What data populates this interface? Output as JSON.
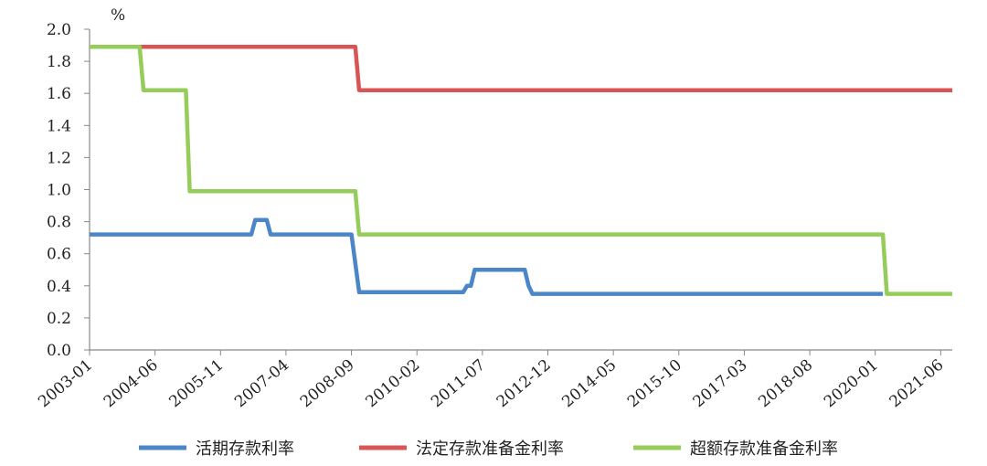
{
  "chart_data": {
    "type": "line",
    "unit_label": "%",
    "x_tick_labels": [
      "2003-01",
      "2004-06",
      "2005-11",
      "2007-04",
      "2008-09",
      "2010-02",
      "2011-07",
      "2012-12",
      "2014-05",
      "2015-10",
      "2017-03",
      "2018-08",
      "2020-01",
      "2021-06"
    ],
    "x_range": [
      "2003-01",
      "2021-09"
    ],
    "ylim": [
      0,
      2.0
    ],
    "y_ticks": [
      "0.0",
      "0.2",
      "0.4",
      "0.6",
      "0.8",
      "1.0",
      "1.2",
      "1.4",
      "1.6",
      "1.8",
      "2.0"
    ],
    "grid": false,
    "legend_position": "bottom",
    "series": [
      {
        "name": "活期存款利率",
        "color": "#4a86c8",
        "points": [
          [
            "2003-01",
            0.72
          ],
          [
            "2006-07",
            0.72
          ],
          [
            "2006-08",
            0.81
          ],
          [
            "2006-11",
            0.81
          ],
          [
            "2006-12",
            0.72
          ],
          [
            "2008-09",
            0.72
          ],
          [
            "2008-11",
            0.36
          ],
          [
            "2011-02",
            0.36
          ],
          [
            "2011-03",
            0.4
          ],
          [
            "2011-04",
            0.4
          ],
          [
            "2011-05",
            0.5
          ],
          [
            "2012-06",
            0.5
          ],
          [
            "2012-07",
            0.4
          ],
          [
            "2012-08",
            0.35
          ],
          [
            "2020-03",
            0.35
          ]
        ]
      },
      {
        "name": "法定存款准备金利率",
        "color": "#d95555",
        "points": [
          [
            "2003-01",
            1.89
          ],
          [
            "2008-10",
            1.89
          ],
          [
            "2008-11",
            1.62
          ],
          [
            "2021-09",
            1.62
          ]
        ]
      },
      {
        "name": "超额存款准备金利率",
        "color": "#96cc5a",
        "points": [
          [
            "2003-01",
            1.89
          ],
          [
            "2004-02",
            1.89
          ],
          [
            "2004-03",
            1.62
          ],
          [
            "2005-02",
            1.62
          ],
          [
            "2005-03",
            0.99
          ],
          [
            "2008-10",
            0.99
          ],
          [
            "2008-11",
            0.72
          ],
          [
            "2020-03",
            0.72
          ],
          [
            "2020-04",
            0.35
          ],
          [
            "2021-09",
            0.35
          ]
        ]
      }
    ]
  }
}
